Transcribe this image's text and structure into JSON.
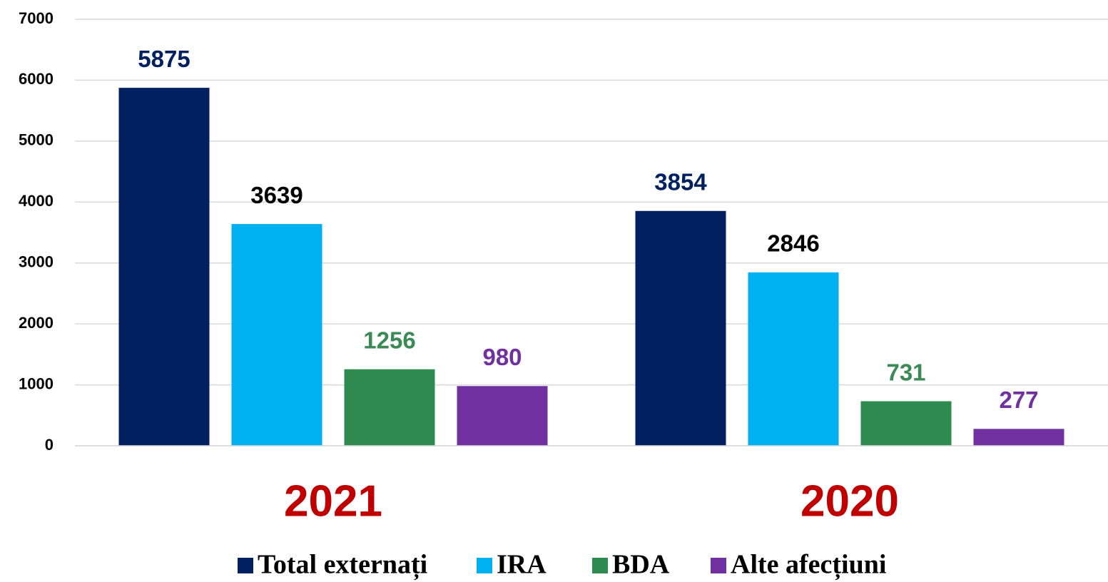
{
  "chart_data": {
    "type": "bar",
    "categories": [
      "2021",
      "2020"
    ],
    "series": [
      {
        "name": "Total externați",
        "color": "#002060",
        "label_color": "#002060",
        "values": [
          5875,
          3854
        ]
      },
      {
        "name": "IRA",
        "color": "#00b0f0",
        "label_color": "#000000",
        "values": [
          3639,
          2846
        ]
      },
      {
        "name": "BDA",
        "color": "#2e8b4f",
        "label_color": "#3a8a55",
        "values": [
          1256,
          731
        ]
      },
      {
        "name": "Alte afecțiuni",
        "color": "#7030a0",
        "label_color": "#7030a0",
        "values": [
          980,
          277
        ]
      }
    ],
    "ylim": [
      0,
      7000
    ],
    "yticks": [
      0,
      1000,
      2000,
      3000,
      4000,
      5000,
      6000,
      7000
    ],
    "grid": true,
    "legend": "bottom",
    "category_color": "#c00000"
  }
}
